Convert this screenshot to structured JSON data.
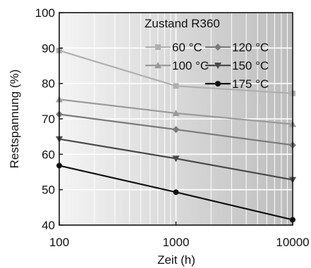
{
  "chart_data": {
    "type": "line",
    "title": "",
    "xlabel": "Zeit (h)",
    "ylabel": "Restspannung (%)",
    "xscale": "log",
    "xlim": [
      100,
      10000
    ],
    "ylim": [
      40,
      100
    ],
    "xticks": [
      100,
      1000,
      10000
    ],
    "yticks": [
      40,
      50,
      60,
      70,
      80,
      90,
      100
    ],
    "grid": true,
    "legend_title": "Zustand R360",
    "legend_position": "top-right",
    "series": [
      {
        "name": "60 °C",
        "marker": "square",
        "color": "#b0b0b0",
        "x": [
          100,
          1000,
          10000
        ],
        "y": [
          89.3,
          79.3,
          77.2
        ]
      },
      {
        "name": "100 °C",
        "marker": "triangle-up",
        "color": "#9a9a9a",
        "x": [
          100,
          1000,
          10000
        ],
        "y": [
          75.5,
          71.6,
          68.5
        ]
      },
      {
        "name": "120 °C",
        "marker": "diamond",
        "color": "#7a7a7a",
        "x": [
          100,
          1000,
          10000
        ],
        "y": [
          71.3,
          67.0,
          62.6
        ]
      },
      {
        "name": "150 °C",
        "marker": "triangle-down",
        "color": "#4a4a4a",
        "x": [
          100,
          1000,
          10000
        ],
        "y": [
          64.3,
          58.8,
          52.8
        ]
      },
      {
        "name": "175 °C",
        "marker": "circle",
        "color": "#111111",
        "x": [
          100,
          1000,
          10000
        ],
        "y": [
          56.8,
          49.3,
          41.5
        ]
      }
    ]
  }
}
